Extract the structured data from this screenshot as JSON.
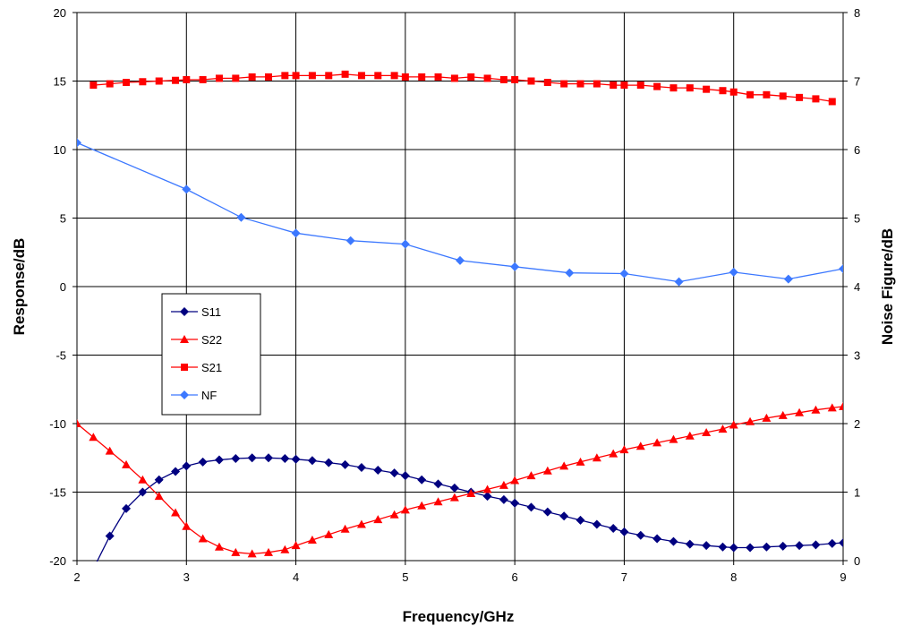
{
  "chart_data": {
    "type": "line",
    "title": "",
    "xlabel": "Frequency/GHz",
    "ylabel": "Response/dB",
    "y2label": "Noise Figure/dB",
    "xlim": [
      2,
      9
    ],
    "ylim": [
      -20,
      20
    ],
    "y2lim": [
      0,
      8
    ],
    "x_ticks": [
      "2",
      "3",
      "4",
      "5",
      "6",
      "7",
      "8",
      "9"
    ],
    "y_ticks": [
      "-20",
      "-15",
      "-10",
      "-5",
      "0",
      "5",
      "10",
      "15",
      "20"
    ],
    "y2_ticks": [
      "0",
      "1",
      "2",
      "3",
      "4",
      "5",
      "6",
      "7",
      "8"
    ],
    "grid": true,
    "legend_position": "center-left",
    "series": [
      {
        "name": "S11",
        "axis": "left",
        "color": "#000080",
        "marker": "diamond",
        "x": [
          2.15,
          2.3,
          2.45,
          2.6,
          2.75,
          2.9,
          3.0,
          3.15,
          3.3,
          3.45,
          3.6,
          3.75,
          3.9,
          4.0,
          4.15,
          4.3,
          4.45,
          4.6,
          4.75,
          4.9,
          5.0,
          5.15,
          5.3,
          5.45,
          5.6,
          5.75,
          5.9,
          6.0,
          6.15,
          6.3,
          6.45,
          6.6,
          6.75,
          6.9,
          7.0,
          7.15,
          7.3,
          7.45,
          7.6,
          7.75,
          7.9,
          8.0,
          8.15,
          8.3,
          8.45,
          8.6,
          8.75,
          8.9,
          9.0
        ],
        "y": [
          -20.6,
          -18.2,
          -16.2,
          -15.0,
          -14.1,
          -13.5,
          -13.1,
          -12.8,
          -12.65,
          -12.55,
          -12.5,
          -12.5,
          -12.55,
          -12.6,
          -12.7,
          -12.85,
          -13.0,
          -13.2,
          -13.4,
          -13.6,
          -13.8,
          -14.1,
          -14.4,
          -14.7,
          -15.0,
          -15.3,
          -15.55,
          -15.8,
          -16.1,
          -16.45,
          -16.75,
          -17.05,
          -17.35,
          -17.65,
          -17.9,
          -18.15,
          -18.4,
          -18.6,
          -18.8,
          -18.9,
          -19.0,
          -19.05,
          -19.05,
          -19.0,
          -18.95,
          -18.9,
          -18.85,
          -18.75,
          -18.7
        ]
      },
      {
        "name": "S22",
        "axis": "left",
        "color": "#ff0000",
        "marker": "triangle",
        "x": [
          2.0,
          2.15,
          2.3,
          2.45,
          2.6,
          2.75,
          2.9,
          3.0,
          3.15,
          3.3,
          3.45,
          3.6,
          3.75,
          3.9,
          4.0,
          4.15,
          4.3,
          4.45,
          4.6,
          4.75,
          4.9,
          5.0,
          5.15,
          5.3,
          5.45,
          5.6,
          5.75,
          5.9,
          6.0,
          6.15,
          6.3,
          6.45,
          6.6,
          6.75,
          6.9,
          7.0,
          7.15,
          7.3,
          7.45,
          7.6,
          7.75,
          7.9,
          8.0,
          8.15,
          8.3,
          8.45,
          8.6,
          8.75,
          8.9,
          9.0
        ],
        "y": [
          -10.0,
          -11.0,
          -12.0,
          -13.0,
          -14.1,
          -15.3,
          -16.5,
          -17.5,
          -18.4,
          -19.0,
          -19.4,
          -19.5,
          -19.4,
          -19.2,
          -18.9,
          -18.5,
          -18.1,
          -17.7,
          -17.35,
          -17.0,
          -16.65,
          -16.3,
          -16.0,
          -15.7,
          -15.4,
          -15.1,
          -14.8,
          -14.5,
          -14.15,
          -13.8,
          -13.45,
          -13.1,
          -12.8,
          -12.5,
          -12.2,
          -11.9,
          -11.65,
          -11.4,
          -11.15,
          -10.9,
          -10.65,
          -10.4,
          -10.1,
          -9.85,
          -9.6,
          -9.4,
          -9.2,
          -9.0,
          -8.85,
          -8.75
        ]
      },
      {
        "name": "S21",
        "axis": "left",
        "color": "#ff0000",
        "marker": "square",
        "x": [
          2.15,
          2.3,
          2.45,
          2.6,
          2.75,
          2.9,
          3.0,
          3.15,
          3.3,
          3.45,
          3.6,
          3.75,
          3.9,
          4.0,
          4.15,
          4.3,
          4.45,
          4.6,
          4.75,
          4.9,
          5.0,
          5.15,
          5.3,
          5.45,
          5.6,
          5.75,
          5.9,
          6.0,
          6.15,
          6.3,
          6.45,
          6.6,
          6.75,
          6.9,
          7.0,
          7.15,
          7.3,
          7.45,
          7.6,
          7.75,
          7.9,
          8.0,
          8.15,
          8.3,
          8.45,
          8.6,
          8.75,
          8.9
        ],
        "y": [
          14.7,
          14.8,
          14.9,
          14.95,
          15.0,
          15.05,
          15.1,
          15.1,
          15.2,
          15.2,
          15.3,
          15.3,
          15.4,
          15.4,
          15.4,
          15.4,
          15.5,
          15.4,
          15.4,
          15.4,
          15.3,
          15.3,
          15.3,
          15.2,
          15.3,
          15.2,
          15.1,
          15.1,
          15.0,
          14.9,
          14.8,
          14.8,
          14.8,
          14.7,
          14.7,
          14.7,
          14.6,
          14.5,
          14.5,
          14.4,
          14.3,
          14.2,
          14.0,
          14.0,
          13.9,
          13.8,
          13.7,
          13.5
        ]
      },
      {
        "name": "NF",
        "axis": "right",
        "color": "#3c78ff",
        "marker": "diamond",
        "x": [
          2.0,
          3.0,
          3.5,
          4.0,
          4.5,
          5.0,
          5.5,
          6.0,
          6.5,
          7.0,
          7.5,
          8.0,
          8.5,
          9.0
        ],
        "y": [
          6.1,
          5.42,
          5.01,
          4.78,
          4.67,
          4.62,
          4.38,
          4.29,
          4.2,
          4.19,
          4.07,
          4.21,
          4.11,
          4.26
        ]
      }
    ]
  }
}
